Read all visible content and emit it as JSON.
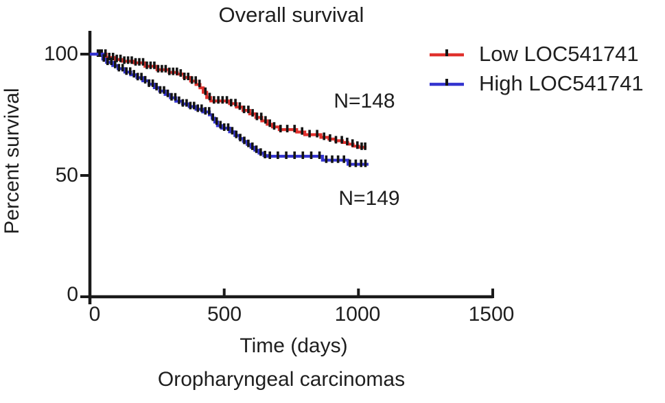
{
  "chart_data": {
    "type": "line",
    "variant": "kaplan_meier_step",
    "title": "Overall survival",
    "xlabel": "Time (days)",
    "ylabel": "Percent survival",
    "context_label": "Oropharyngeal carcinomas",
    "xlim": [
      0,
      1500
    ],
    "ylim": [
      0,
      100
    ],
    "x_ticks": [
      0,
      500,
      1000,
      1500
    ],
    "y_ticks": [
      0,
      50,
      100
    ],
    "grid": false,
    "legend_position": "top-right",
    "axis_color": "#1a1a1a",
    "censor_color": "#141414",
    "background_color": "#ffffff",
    "series": [
      {
        "name": "Low LOC541741",
        "n": 148,
        "color": "#e0312d",
        "points": [
          [
            0,
            100
          ],
          [
            60,
            98.6
          ],
          [
            95,
            97.8
          ],
          [
            120,
            97.1
          ],
          [
            165,
            96.4
          ],
          [
            205,
            95.0
          ],
          [
            250,
            93.6
          ],
          [
            295,
            92.5
          ],
          [
            325,
            91.8
          ],
          [
            350,
            90.4
          ],
          [
            375,
            88.9
          ],
          [
            395,
            87.5
          ],
          [
            410,
            86.1
          ],
          [
            422,
            84.3
          ],
          [
            435,
            82.1
          ],
          [
            450,
            80.7
          ],
          [
            520,
            79.6
          ],
          [
            545,
            78.2
          ],
          [
            570,
            76.8
          ],
          [
            595,
            75.4
          ],
          [
            618,
            73.9
          ],
          [
            640,
            72.5
          ],
          [
            660,
            71.1
          ],
          [
            680,
            70.0
          ],
          [
            705,
            68.9
          ],
          [
            770,
            67.9
          ],
          [
            800,
            66.8
          ],
          [
            860,
            65.7
          ],
          [
            890,
            65.0
          ],
          [
            915,
            64.3
          ],
          [
            940,
            63.6
          ],
          [
            960,
            62.9
          ],
          [
            980,
            62.1
          ],
          [
            1000,
            61.6
          ],
          [
            1030,
            61.6
          ]
        ],
        "censor_days": [
          30,
          44,
          58,
          72,
          86,
          100,
          114,
          128,
          142,
          156,
          170,
          184,
          198,
          212,
          226,
          240,
          254,
          268,
          282,
          296,
          310,
          324,
          338,
          352,
          366,
          380,
          394,
          408,
          430,
          446,
          462,
          478,
          494,
          510,
          526,
          542,
          558,
          574,
          590,
          606,
          622,
          638,
          654,
          670,
          686,
          710,
          735,
          762,
          790,
          818,
          846,
          872,
          894,
          916,
          938,
          958,
          978,
          996,
          1012,
          1025
        ]
      },
      {
        "name": "High LOC541741",
        "n": 149,
        "color": "#3434cf",
        "points": [
          [
            0,
            100
          ],
          [
            48,
            98.0
          ],
          [
            62,
            96.6
          ],
          [
            85,
            95.3
          ],
          [
            105,
            94.0
          ],
          [
            130,
            92.6
          ],
          [
            152,
            91.5
          ],
          [
            175,
            90.3
          ],
          [
            197,
            89.0
          ],
          [
            220,
            87.6
          ],
          [
            240,
            86.2
          ],
          [
            260,
            84.8
          ],
          [
            280,
            83.4
          ],
          [
            300,
            82.0
          ],
          [
            320,
            80.6
          ],
          [
            345,
            79.5
          ],
          [
            370,
            78.4
          ],
          [
            395,
            77.3
          ],
          [
            420,
            76.2
          ],
          [
            445,
            75.0
          ],
          [
            455,
            73.6
          ],
          [
            465,
            72.0
          ],
          [
            475,
            70.5
          ],
          [
            490,
            69.5
          ],
          [
            520,
            68.0
          ],
          [
            540,
            66.5
          ],
          [
            558,
            65.2
          ],
          [
            572,
            64.0
          ],
          [
            586,
            62.8
          ],
          [
            600,
            61.6
          ],
          [
            614,
            60.4
          ],
          [
            630,
            59.2
          ],
          [
            648,
            58.2
          ],
          [
            662,
            57.9
          ],
          [
            866,
            56.3
          ],
          [
            961,
            54.6
          ],
          [
            1032,
            54.0
          ]
        ],
        "censor_days": [
          36,
          52,
          66,
          80,
          94,
          108,
          122,
          136,
          150,
          164,
          178,
          192,
          206,
          220,
          234,
          248,
          262,
          276,
          290,
          304,
          318,
          332,
          346,
          360,
          374,
          388,
          402,
          416,
          430,
          444,
          458,
          472,
          486,
          500,
          515,
          530,
          545,
          560,
          575,
          590,
          605,
          620,
          636,
          652,
          670,
          700,
          731,
          762,
          793,
          824,
          855,
          880,
          902,
          924,
          946,
          968,
          990,
          1010,
          1026
        ]
      }
    ],
    "annotations": [
      {
        "text": "N=148",
        "x_days": 1020,
        "y_percent": 80.5
      },
      {
        "text": "N=149",
        "x_days": 1040,
        "y_percent": 40.4
      }
    ]
  }
}
